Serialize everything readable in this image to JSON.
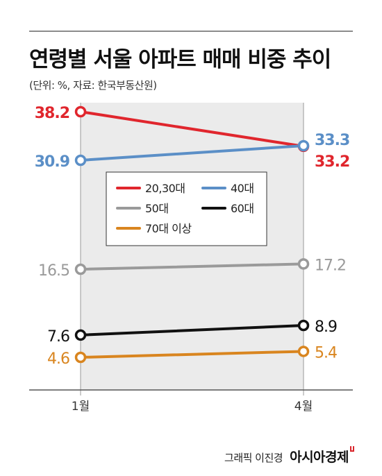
{
  "title": "연령별 서울 아파트 매매 비중 추이",
  "subtitle": "(단위: %, 자료: 한국부동산원)",
  "footer": {
    "credit": "그래픽 이진경",
    "brand": "아시아경제"
  },
  "chart_data": {
    "type": "line",
    "categories": [
      "1월",
      "4월"
    ],
    "series": [
      {
        "name": "20,30대",
        "values": [
          38.2,
          33.2
        ],
        "labels": [
          "38.2",
          "33.2"
        ],
        "color": "#e0262d",
        "bold_labels": true
      },
      {
        "name": "40대",
        "values": [
          30.9,
          33.3
        ],
        "labels": [
          "30.9",
          "33.3"
        ],
        "color": "#5b8fc7",
        "bold_labels": true
      },
      {
        "name": "50대",
        "values": [
          16.5,
          17.2
        ],
        "labels": [
          "16.5",
          "17.2"
        ],
        "color": "#9a9a9a",
        "bold_labels": false
      },
      {
        "name": "60대",
        "values": [
          7.6,
          8.9
        ],
        "labels": [
          "7.6",
          "8.9"
        ],
        "color": "#111111",
        "bold_labels": false
      },
      {
        "name": "70대 이상",
        "values": [
          4.6,
          5.4
        ],
        "labels": [
          "4.6",
          "5.4"
        ],
        "color": "#d9851f",
        "bold_labels": false
      }
    ],
    "legend_position": "center",
    "grid": false,
    "shaded_band_color": "#ebebeb"
  }
}
